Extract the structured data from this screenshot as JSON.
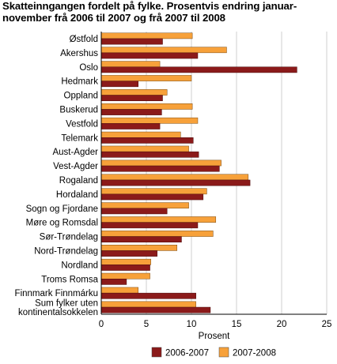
{
  "chart_data": {
    "type": "bar",
    "orientation": "horizontal",
    "title": "Skatteinngangen fordelt på fylke. Prosentvis endring januar-november frå 2006 til 2007 og frå 2007 til 2008",
    "title_lines": [
      "Skatteinngangen fordelt på fylke. Prosentvis endring januar-",
      "november frå 2006 til 2007 og frå 2007 til 2008"
    ],
    "xlabel": "Prosent",
    "ylabel": "",
    "xlim": [
      0,
      25
    ],
    "xticks": [
      "0",
      "5",
      "10",
      "15",
      "20",
      "25"
    ],
    "grid": true,
    "legend_position": "bottom",
    "categories": [
      "Østfold",
      "Akershus",
      "Oslo",
      "Hedmark",
      "Oppland",
      "Buskerud",
      "Vestfold",
      "Telemark",
      "Aust-Agder",
      "Vest-Agder",
      "Rogaland",
      "Hordaland",
      "Sogn og Fjordane",
      "Møre og Romsdal",
      "Sør-Trøndelag",
      "Nord-Trøndelag",
      "Nordland",
      "Troms Romsa",
      "Finnmark Finnmárku",
      "Sum fylker uten kontinentalsokkelen"
    ],
    "category_lines": [
      [
        "Østfold"
      ],
      [
        "Akershus"
      ],
      [
        "Oslo"
      ],
      [
        "Hedmark"
      ],
      [
        "Oppland"
      ],
      [
        "Buskerud"
      ],
      [
        "Vestfold"
      ],
      [
        "Telemark"
      ],
      [
        "Aust-Agder"
      ],
      [
        "Vest-Agder"
      ],
      [
        "Rogaland"
      ],
      [
        "Hordaland"
      ],
      [
        "Sogn og Fjordane"
      ],
      [
        "Møre og Romsdal"
      ],
      [
        "Sør-Trøndelag"
      ],
      [
        "Nord-Trøndelag"
      ],
      [
        "Nordland"
      ],
      [
        "Troms Romsa"
      ],
      [
        "Finnmark Finnmárku"
      ],
      [
        "Sum fylker uten",
        "kontinentalsokkelen"
      ]
    ],
    "series": [
      {
        "name": "2006-2007",
        "color": "#8b1a1a",
        "values": [
          6.8,
          10.7,
          21.7,
          4.1,
          6.8,
          6.7,
          6.5,
          10.2,
          10.8,
          13.1,
          16.5,
          11.3,
          7.3,
          10.7,
          8.9,
          6.2,
          5.4,
          2.8,
          10.5,
          12.1
        ]
      },
      {
        "name": "2007-2008",
        "color": "#f7a13a",
        "values": [
          10.1,
          13.9,
          6.5,
          10.0,
          7.3,
          10.1,
          10.7,
          8.8,
          9.7,
          13.3,
          16.3,
          11.7,
          9.7,
          12.7,
          12.4,
          8.4,
          5.5,
          5.4,
          4.1,
          10.5
        ]
      }
    ]
  }
}
